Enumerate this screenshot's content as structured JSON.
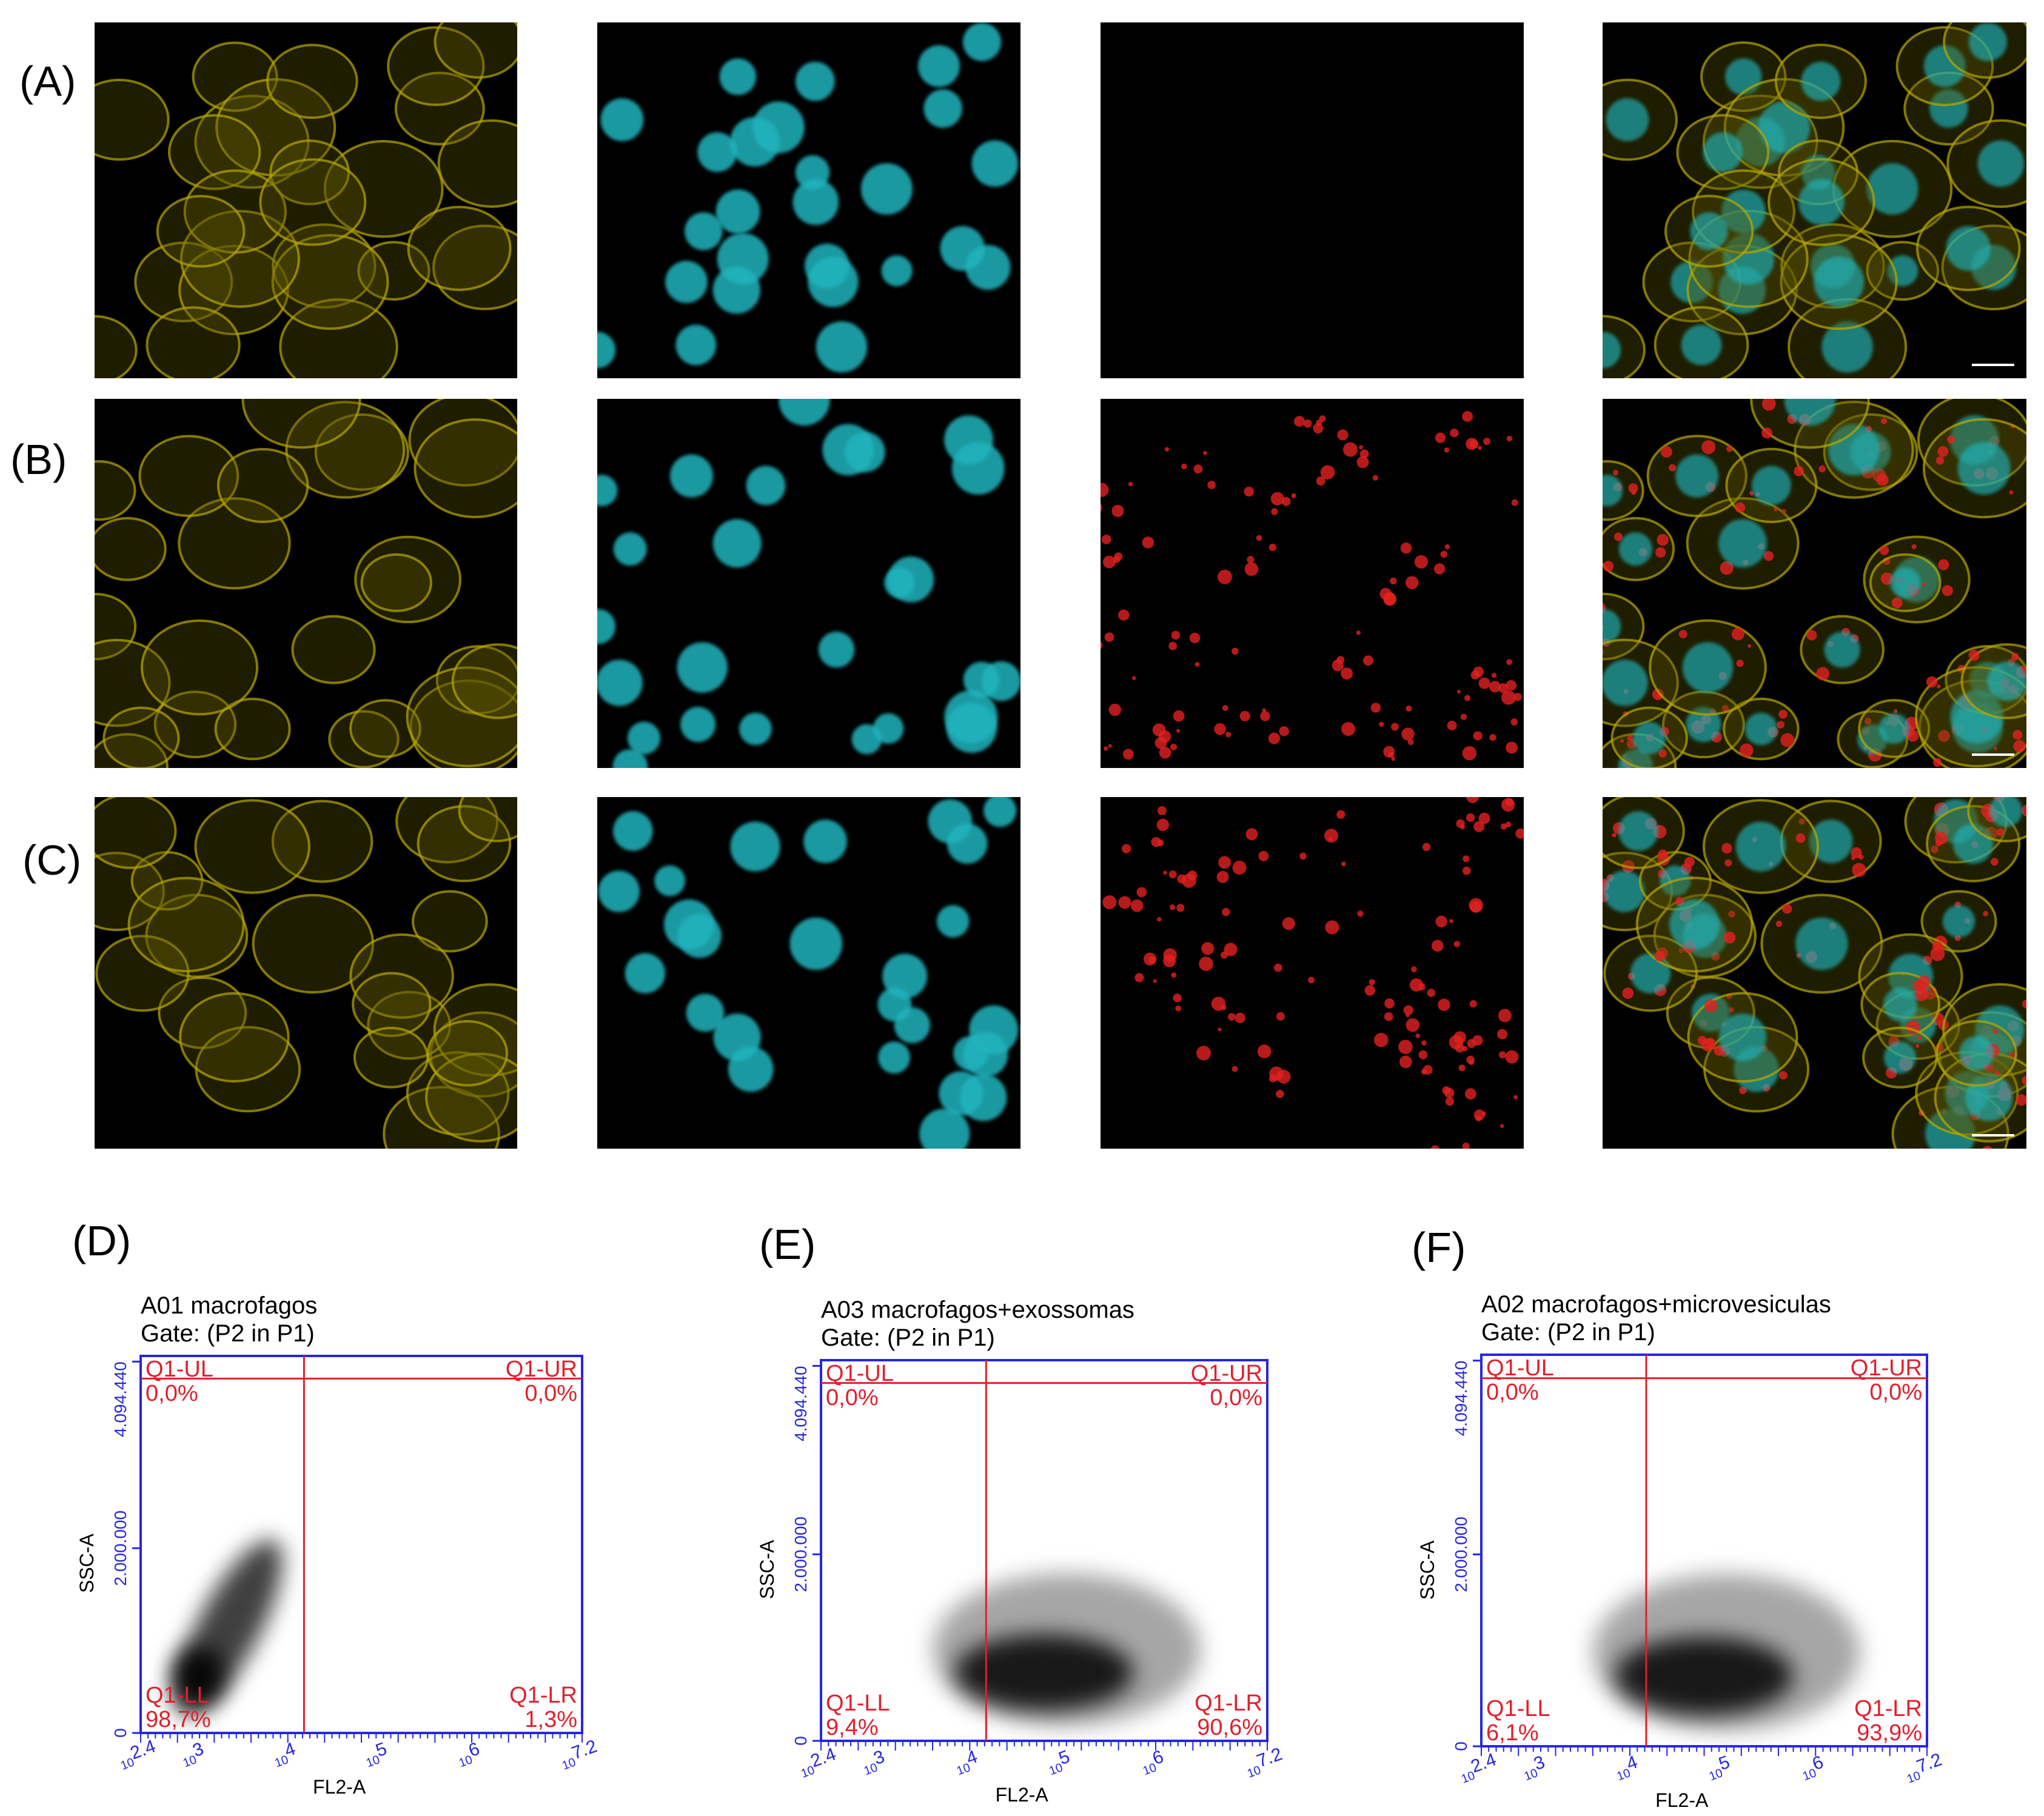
{
  "panel_labels": [
    "(A)",
    "(B)",
    "(C)",
    "(D)",
    "(E)",
    "(F)"
  ],
  "plots": [
    {
      "title": "A01 macrofagos",
      "gate": "Gate: (P2 in P1)",
      "x_label": "FL2-A",
      "y_label": "SSC-A",
      "y_ticks": [
        "0",
        "2.000.000",
        "4.094.440"
      ],
      "x_ticks": [
        {
          "base": "10",
          "exp": "2.4"
        },
        {
          "base": "10",
          "exp": "3"
        },
        {
          "base": "10",
          "exp": "4"
        },
        {
          "base": "10",
          "exp": "5"
        },
        {
          "base": "10",
          "exp": "6"
        },
        {
          "base": "10",
          "exp": "7.2"
        }
      ],
      "quadrants": {
        "UL": {
          "name": "Q1-UL",
          "percent": "0,0%"
        },
        "UR": {
          "name": "Q1-UR",
          "percent": "0,0%"
        },
        "LL": {
          "name": "Q1-LL",
          "percent": "98,7%"
        },
        "LR": {
          "name": "Q1-LR",
          "percent": "1,3%"
        }
      }
    },
    {
      "title": "A03 macrofagos+exossomas",
      "gate": "Gate: (P2 in P1)",
      "x_label": "FL2-A",
      "y_label": "SSC-A",
      "y_ticks": [
        "0",
        "2.000.000",
        "4.094.440"
      ],
      "x_ticks": [
        {
          "base": "10",
          "exp": "2.4"
        },
        {
          "base": "10",
          "exp": "3"
        },
        {
          "base": "10",
          "exp": "4"
        },
        {
          "base": "10",
          "exp": "5"
        },
        {
          "base": "10",
          "exp": "6"
        },
        {
          "base": "10",
          "exp": "7.2"
        }
      ],
      "quadrants": {
        "UL": {
          "name": "Q1-UL",
          "percent": "0,0%"
        },
        "UR": {
          "name": "Q1-UR",
          "percent": "0,0%"
        },
        "LL": {
          "name": "Q1-LL",
          "percent": "9,4%"
        },
        "LR": {
          "name": "Q1-LR",
          "percent": "90,6%"
        }
      }
    },
    {
      "title": "A02 macrofagos+microvesiculas",
      "gate": "Gate: (P2 in P1)",
      "x_label": "FL2-A",
      "y_label": "SSC-A",
      "y_ticks": [
        "0",
        "2.000.000",
        "4.094.440"
      ],
      "x_ticks": [
        {
          "base": "10",
          "exp": "2.4"
        },
        {
          "base": "10",
          "exp": "3"
        },
        {
          "base": "10",
          "exp": "4"
        },
        {
          "base": "10",
          "exp": "5"
        },
        {
          "base": "10",
          "exp": "6"
        },
        {
          "base": "10",
          "exp": "7.2"
        }
      ],
      "quadrants": {
        "UL": {
          "name": "Q1-UL",
          "percent": "0,0%"
        },
        "UR": {
          "name": "Q1-UR",
          "percent": "0,0%"
        },
        "LL": {
          "name": "Q1-LL",
          "percent": "6,1%"
        },
        "LR": {
          "name": "Q1-LR",
          "percent": "93,9%"
        }
      }
    }
  ]
}
